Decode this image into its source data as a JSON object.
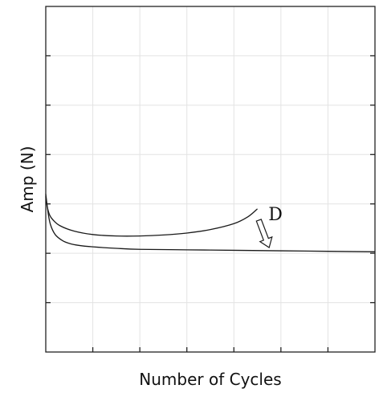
{
  "chart_data": {
    "type": "line",
    "title": "",
    "xlabel": "Number of Cycles",
    "ylabel": "Amp (N)",
    "xlim": [
      0,
      7
    ],
    "ylim": [
      0,
      7
    ],
    "grid": true,
    "legend": "none",
    "tick_labels": false,
    "series": [
      {
        "x": [
          0,
          0.03,
          0.08,
          0.15,
          0.3,
          0.6,
          1.0,
          1.5,
          2.0,
          2.5,
          3.0,
          3.5,
          4.0,
          4.3,
          4.5
        ],
        "y": [
          3.15,
          2.95,
          2.78,
          2.68,
          2.56,
          2.45,
          2.38,
          2.35,
          2.35,
          2.37,
          2.41,
          2.48,
          2.6,
          2.74,
          2.9
        ]
      },
      {
        "x": [
          0,
          0.05,
          0.1,
          0.2,
          0.35,
          0.5,
          0.7,
          1.0,
          1.5,
          2.0,
          3.0,
          4.0,
          5.0,
          6.0,
          7.0
        ],
        "y": [
          3.2,
          2.82,
          2.58,
          2.38,
          2.26,
          2.2,
          2.16,
          2.13,
          2.1,
          2.08,
          2.07,
          2.06,
          2.05,
          2.04,
          2.03
        ]
      }
    ],
    "annotations": [
      {
        "text": "D",
        "x": 4.7,
        "y": 2.8,
        "arrow_to": [
          4.75,
          2.1
        ]
      }
    ]
  }
}
